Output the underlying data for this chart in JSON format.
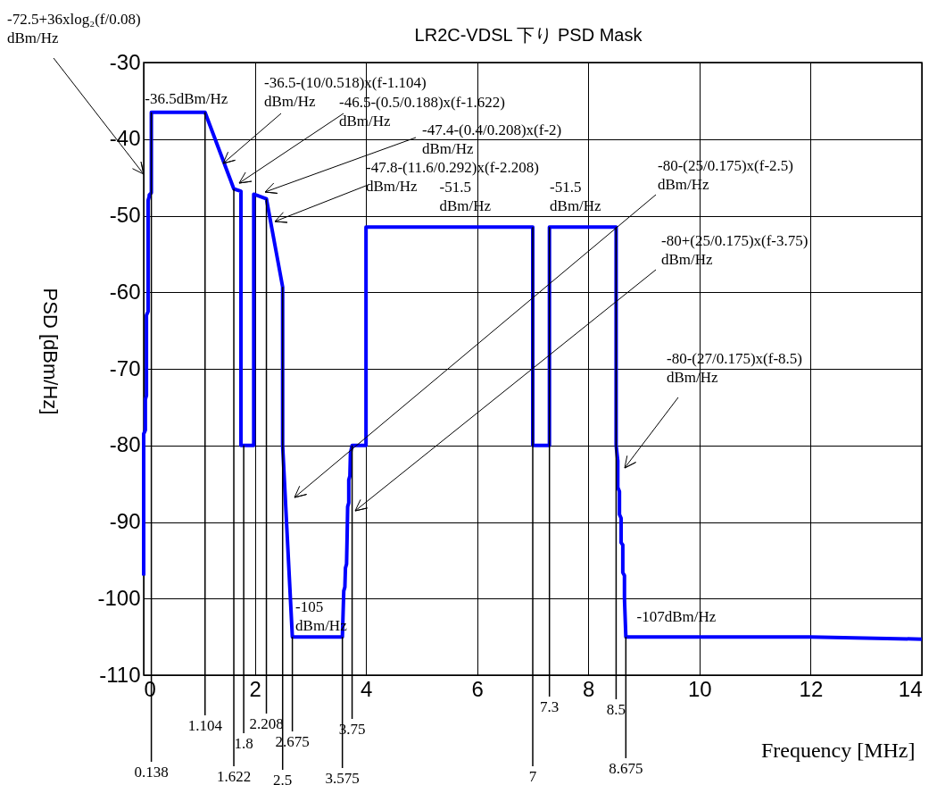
{
  "chart_data": {
    "type": "line",
    "title": "LR2C-VDSL 下り PSD Mask",
    "xlabel": "Frequency [MHz]",
    "ylabel": "PSD [dBm/Hz]",
    "xlim": [
      0,
      14
    ],
    "xticks": [
      0,
      2,
      4,
      6,
      8,
      10,
      12,
      14
    ],
    "ylim": [
      -110,
      -30
    ],
    "yticks": [
      -110,
      -100,
      -90,
      -80,
      -70,
      -60,
      -50,
      -40,
      -30
    ],
    "grid": true,
    "x": [
      0,
      0,
      0.03,
      0.03,
      0.05,
      0.05,
      0.08,
      0.08,
      0.1,
      0.1,
      0.138,
      0.138,
      1.104,
      1.622,
      1.75,
      1.75,
      1.98,
      1.98,
      2.208,
      2.5,
      2.5,
      2.675,
      3.575,
      3.6,
      3.62,
      3.63,
      3.65,
      3.66,
      3.67,
      3.69,
      3.69,
      3.71,
      3.72,
      3.75,
      4.0,
      4.0,
      7.0,
      7.0,
      7.3,
      7.3,
      8.5,
      8.5,
      8.53,
      8.53,
      8.56,
      8.56,
      8.59,
      8.59,
      8.62,
      8.62,
      8.65,
      8.65,
      8.675,
      12,
      14
    ],
    "series": [
      {
        "color": "#0000ff",
        "values": [
          -97,
          -78.5,
          -78,
          -74,
          -73.5,
          -63,
          -62.5,
          -48,
          -47.5,
          -47.3,
          -47,
          -36.5,
          -36.5,
          -46.5,
          -46.8,
          -80,
          -80,
          -47.2,
          -47.8,
          -59.3,
          -80,
          -105,
          -105,
          -99,
          -98.5,
          -96,
          -95.5,
          -92,
          -88,
          -87.5,
          -84.5,
          -84,
          -81,
          -80,
          -80,
          -51.5,
          -51.5,
          -80,
          -80,
          -51.5,
          -51.5,
          -80,
          -82,
          -85.5,
          -86,
          -89,
          -89.5,
          -92.7,
          -93,
          -96.6,
          -97,
          -100,
          -105,
          -105,
          -105.3
        ]
      }
    ],
    "ref_lines": [
      {
        "axis": "x",
        "value": 0.138,
        "label": "0.138"
      },
      {
        "axis": "x",
        "value": 1.104,
        "label": "1.104"
      },
      {
        "axis": "x",
        "value": 1.622,
        "label": "1.622"
      },
      {
        "axis": "x",
        "value": 1.8,
        "label": "1.8"
      },
      {
        "axis": "x",
        "value": 2.208,
        "label": "2.208"
      },
      {
        "axis": "x",
        "value": 2.5,
        "label": "2.5"
      },
      {
        "axis": "x",
        "value": 2.675,
        "label": "2.675"
      },
      {
        "axis": "x",
        "value": 3.575,
        "label": "3.575"
      },
      {
        "axis": "x",
        "value": 3.75,
        "label": "3.75"
      },
      {
        "axis": "x",
        "value": 7,
        "label": "7"
      },
      {
        "axis": "x",
        "value": 7.3,
        "label": "7.3"
      },
      {
        "axis": "x",
        "value": 8.5,
        "label": "8.5"
      },
      {
        "axis": "x",
        "value": 8.675,
        "label": "8.675"
      }
    ],
    "annotations": [
      "-72.5+36xlog₂(f/0.08)\ndBm/Hz",
      {
        "text": "-36.5dBm/Hz",
        "x": 0.6,
        "y": -36.5
      },
      "-36.5-(10/0.518)x(f-1.104)\ndBm/Hz",
      "-46.5-(0.5/0.188)x(f-1.622)\ndBm/Hz",
      "-47.4-(0.4/0.208)x(f-2)\ndBm/Hz",
      "-47.8-(11.6/0.292)x(f-2.208)\ndBm/Hz",
      {
        "text": "-51.5\ndBm/Hz",
        "x": 5.9,
        "y": -51.5
      },
      {
        "text": "-51.5\ndBm/Hz",
        "x": 7.9,
        "y": -51.5
      },
      "-80-(25/0.175)x(f-2.5)\ndBm/Hz",
      "-80+(25/0.175)x(f-3.75)\ndBm/Hz",
      "-80-(27/0.175)x(f-8.5)\ndBm/Hz",
      {
        "text": "-105\ndBm/Hz",
        "x": 3.1,
        "y": -105
      },
      {
        "text": "-107dBm/Hz",
        "x": 9.77,
        "y": -105
      }
    ]
  }
}
